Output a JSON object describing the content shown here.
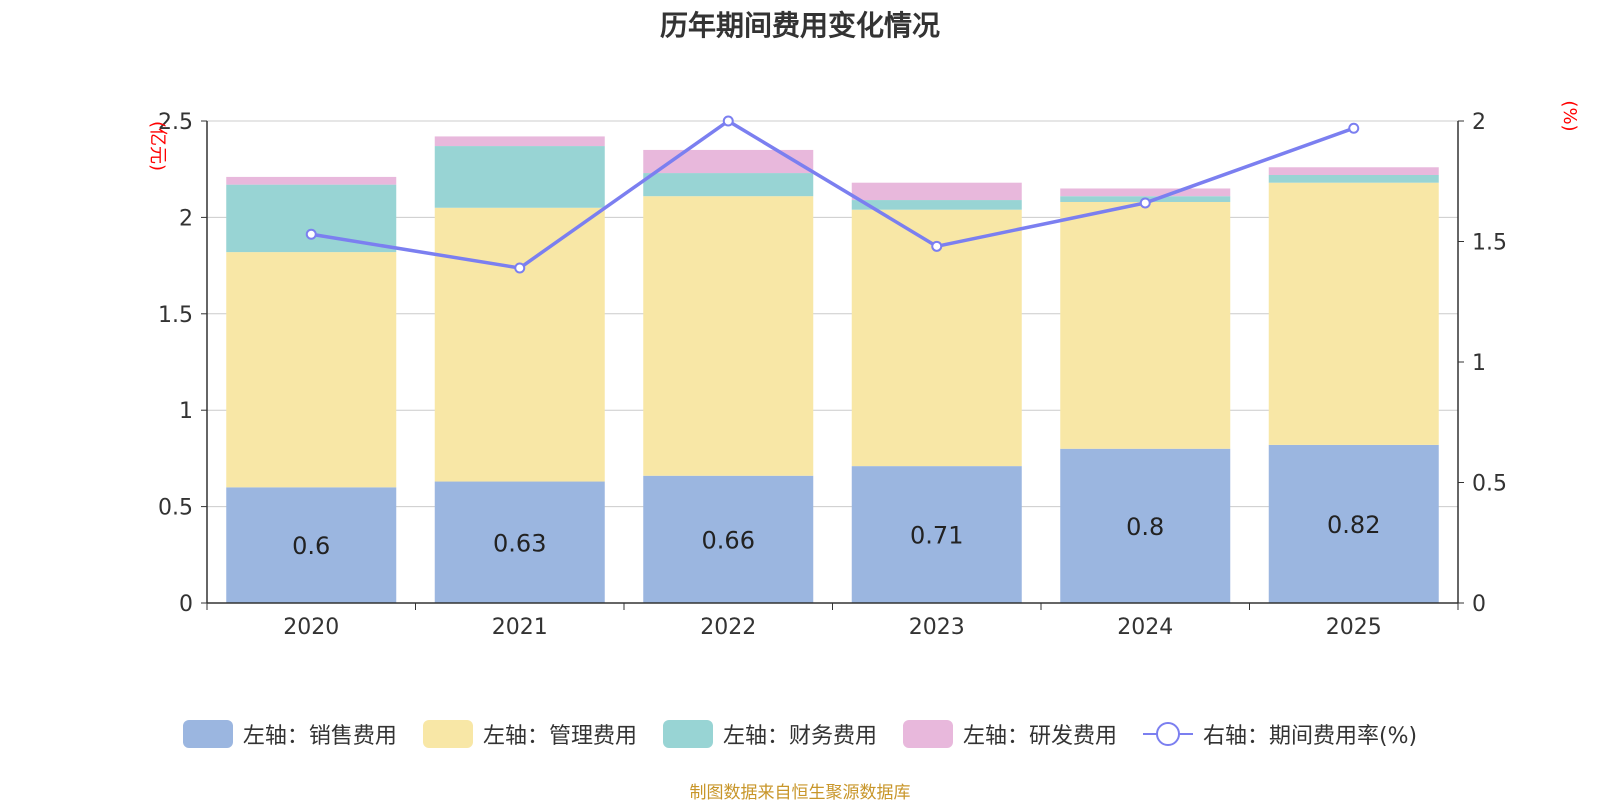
{
  "chart_data": {
    "type": "bar",
    "title": "历年期间费用变化情况",
    "categories": [
      "2020",
      "2021",
      "2022",
      "2023",
      "2024",
      "2025"
    ],
    "y_left": {
      "label": "(亿元)",
      "range": [
        0,
        2.5
      ],
      "ticks": [
        "0",
        "0.5",
        "1",
        "1.5",
        "2",
        "2.5"
      ]
    },
    "y_right": {
      "label": "(%)",
      "range": [
        0,
        2
      ],
      "ticks": [
        "0",
        "0.5",
        "1",
        "1.5",
        "2"
      ]
    },
    "series": [
      {
        "name": "左轴：销售费用",
        "type": "bar",
        "axis": "left",
        "color": "#9bb6e0",
        "values": [
          0.6,
          0.63,
          0.66,
          0.71,
          0.8,
          0.82
        ],
        "labels": [
          "0.6",
          "0.63",
          "0.66",
          "0.71",
          "0.8",
          "0.82"
        ]
      },
      {
        "name": "左轴：管理费用",
        "type": "bar",
        "axis": "left",
        "color": "#f8e7a6",
        "values": [
          1.22,
          1.42,
          1.45,
          1.33,
          1.28,
          1.36
        ]
      },
      {
        "name": "左轴：财务费用",
        "type": "bar",
        "axis": "left",
        "color": "#98d4d4",
        "values": [
          0.35,
          0.32,
          0.12,
          0.05,
          0.03,
          0.04
        ]
      },
      {
        "name": "左轴：研发费用",
        "type": "bar",
        "axis": "left",
        "color": "#e8b8dc",
        "values": [
          0.04,
          0.05,
          0.12,
          0.09,
          0.04,
          0.04
        ]
      },
      {
        "name": "右轴：期间费用率(%)",
        "type": "line",
        "axis": "right",
        "color": "#7b7ff0",
        "values": [
          1.53,
          1.39,
          2.0,
          1.48,
          1.66,
          1.97
        ]
      }
    ],
    "grid": true,
    "legend_position": "bottom"
  },
  "footer": "制图数据来自恒生聚源数据库"
}
